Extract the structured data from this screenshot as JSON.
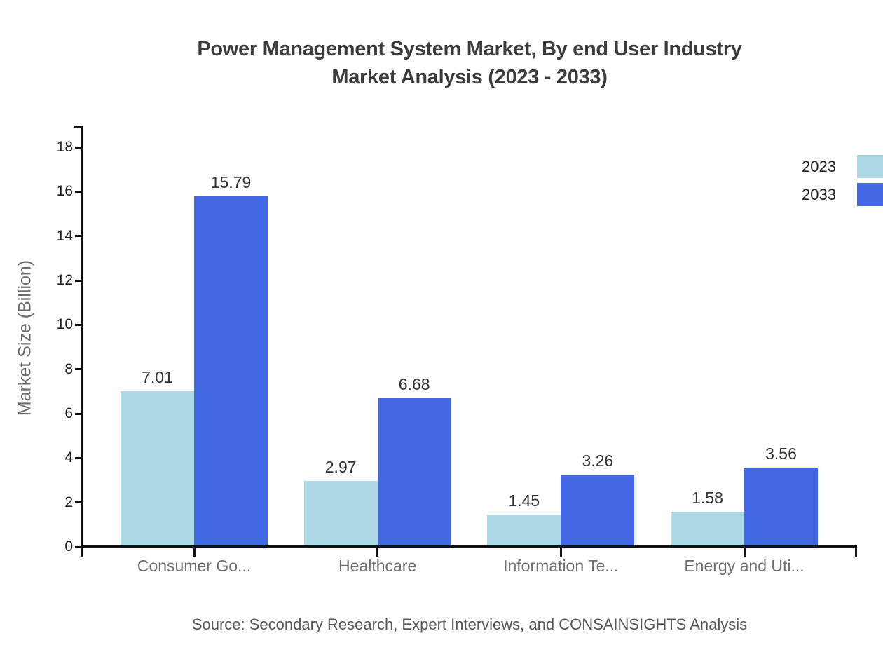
{
  "chart_data": {
    "type": "bar",
    "title": "Power Management System Market, By end User Industry Market Analysis (2023 - 2033)",
    "title_lines": [
      "Power Management System Market, By end User Industry",
      "Market Analysis (2023 - 2033)"
    ],
    "ylabel": "Market Size (Billion)",
    "xlabel": "",
    "categories": [
      "Consumer Go...",
      "Healthcare",
      "Information Te...",
      "Energy and Uti..."
    ],
    "series": [
      {
        "name": "2023",
        "color": "#ADD8E6",
        "values": [
          7.01,
          2.97,
          1.45,
          1.58
        ]
      },
      {
        "name": "2033",
        "color": "#4368E3",
        "values": [
          15.79,
          6.68,
          3.26,
          3.56
        ]
      }
    ],
    "ylim": [
      0,
      18
    ],
    "ytick_step": 2,
    "grid": false,
    "legend_position": "top-right",
    "axis_color": "#111111",
    "source": "Source: Secondary Research, Expert Interviews, and CONSAINSIGHTS Analysis"
  }
}
